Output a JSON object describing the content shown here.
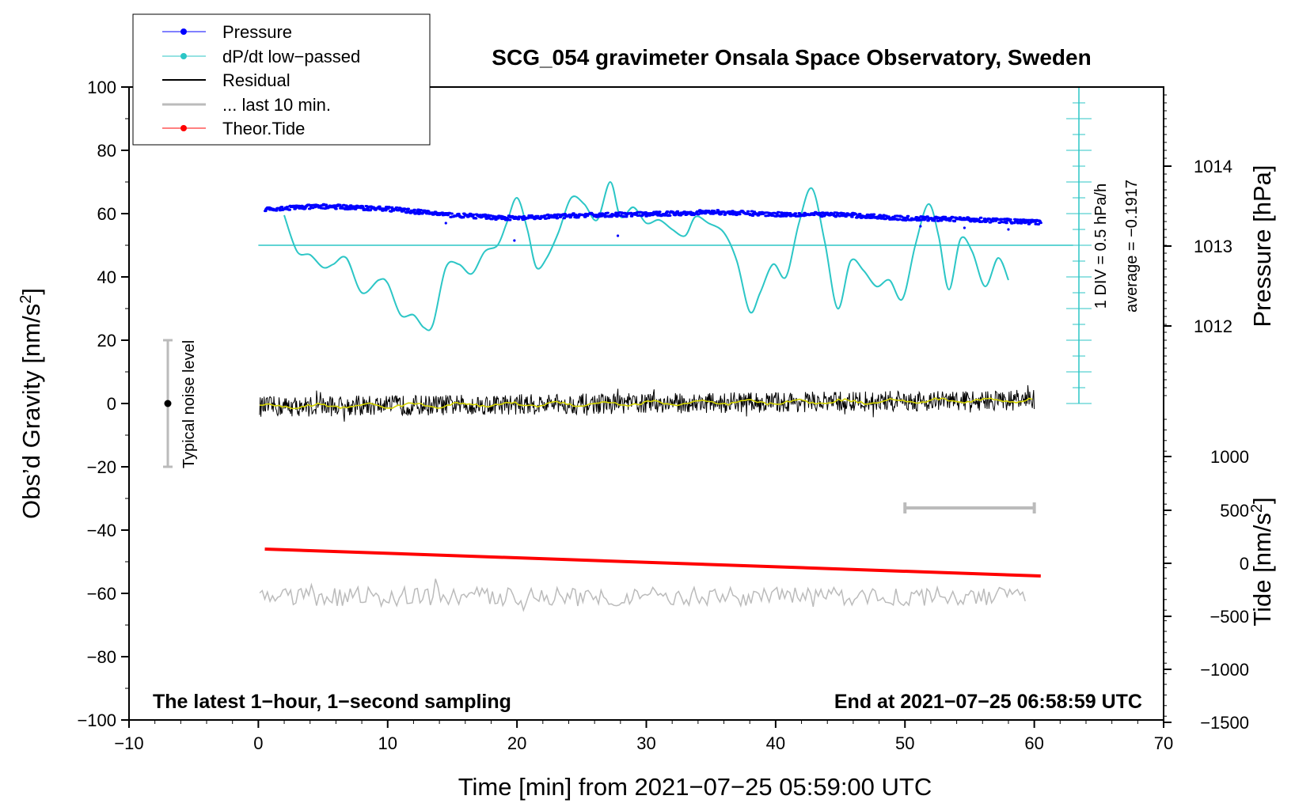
{
  "chart_data": {
    "type": "line",
    "title": "SCG_054 gravimeter Onsala Space Observatory, Sweden",
    "xlabel": "Time [min] from 2021−07−25 05:59:00 UTC",
    "ylabel_main": "Obs’d Gravity [nm/s",
    "ylabel_sup": "2",
    "ylabel_end": "]",
    "ylabel_pressure": "Pressure [hPa]",
    "ylabel_tide_main": "Tide [nm/s",
    "ylabel_tide_sup": "2",
    "ylabel_tide_end": "]",
    "xlim": [
      -10,
      70
    ],
    "ylim": [
      -100,
      100
    ],
    "x_ticks": [
      "−10",
      "0",
      "10",
      "20",
      "30",
      "40",
      "50",
      "60",
      "70"
    ],
    "y_ticks": [
      "100",
      "80",
      "60",
      "40",
      "20",
      "0",
      "−20",
      "−40",
      "−60",
      "−80",
      "−100"
    ],
    "pressure_ticks": [
      "1014",
      "1013",
      "1012"
    ],
    "tide_ticks": [
      "1000",
      "500",
      "0",
      "−500",
      "−1000",
      "−1500"
    ],
    "legend": [
      "Pressure",
      "dP/dt low−passed",
      "Residual",
      "... last 10 min.",
      "Theor.Tide"
    ],
    "colors": {
      "pressure": "#0000ff",
      "dpdt": "#2cc6c6",
      "residual": "#000000",
      "residual_smooth": "#d4d400",
      "last10": "#bbbbbb",
      "tide": "#ff0000"
    },
    "noise_label": "Typical noise level",
    "noise_range": [
      -20,
      20
    ],
    "dpdt_scale_label": "1 DIV = 0.5 hPa/h",
    "dpdt_average_label": "average = −0.1917",
    "footer_left": "The latest 1−hour, 1−second sampling",
    "footer_right": "End at 2021−07−25 06:58:59 UTC",
    "tide_line": {
      "x": [
        0.5,
        60.5
      ],
      "y": [
        -46,
        -54.5
      ]
    },
    "last10_bar": {
      "x": [
        50,
        60
      ],
      "y": -33
    },
    "pressure_series": {
      "x": [
        0.5,
        5,
        10,
        15,
        20,
        25,
        30,
        35,
        40,
        45,
        50,
        55,
        60.5
      ],
      "y": [
        61.5,
        62.3,
        61.5,
        59.5,
        58.5,
        59.5,
        59.8,
        60.5,
        59.8,
        59.7,
        58.5,
        58.2,
        57.2
      ]
    },
    "dpdt_series": {
      "x": [
        2,
        3,
        4,
        5,
        5.8,
        6.8,
        8,
        9.3,
        10,
        11,
        12,
        12.8,
        13.5,
        14.5,
        15.5,
        16.5,
        17.5,
        18.5,
        19.2,
        20,
        20.8,
        21.5,
        22.3,
        23.2,
        24.2,
        25.2,
        26.2,
        27.2,
        28,
        29,
        30,
        31,
        32,
        33,
        33.8,
        34.8,
        36,
        37,
        38,
        38.8,
        39.8,
        40.8,
        41.8,
        42.8,
        43.8,
        44.8,
        45.8,
        46.8,
        47.8,
        48.8,
        49.8,
        50.8,
        51.8,
        52.6,
        53.4,
        54.3,
        55.2,
        56.2,
        57.2,
        58
      ],
      "y": [
        59.5,
        48,
        47,
        43,
        44,
        46,
        35,
        39,
        38,
        28,
        28,
        24,
        25,
        43,
        44,
        41,
        48,
        50,
        57,
        65,
        55,
        43,
        46,
        54,
        65,
        63,
        58,
        70,
        59,
        62,
        57,
        58,
        55,
        53,
        59,
        57,
        54,
        45,
        29,
        35,
        44,
        40,
        57,
        68,
        51,
        30,
        45,
        42,
        37,
        39,
        33,
        50,
        63,
        53,
        36,
        52,
        48,
        37,
        46,
        39
      ]
    },
    "dpdt_baseline": 50
  }
}
